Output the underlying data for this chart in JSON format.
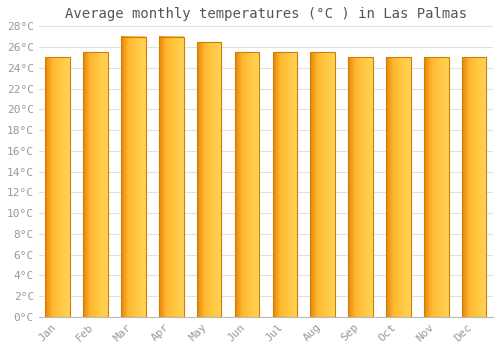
{
  "title": "Average monthly temperatures (°C ) in Las Palmas",
  "months": [
    "Jan",
    "Feb",
    "Mar",
    "Apr",
    "May",
    "Jun",
    "Jul",
    "Aug",
    "Sep",
    "Oct",
    "Nov",
    "Dec"
  ],
  "values": [
    25.0,
    25.5,
    27.0,
    27.0,
    26.5,
    25.5,
    25.5,
    25.5,
    25.0,
    25.0,
    25.0,
    25.0
  ],
  "ylim": [
    0,
    28
  ],
  "ytick_step": 2,
  "bar_color_left": "#E8820A",
  "bar_color_mid": "#FFB830",
  "bar_color_right": "#FFD060",
  "bar_edge_color": "#CC8000",
  "background_color": "#ffffff",
  "grid_color": "#e0e0e0",
  "title_fontsize": 10,
  "tick_fontsize": 8,
  "tick_label_color": "#999999",
  "font_family": "monospace"
}
